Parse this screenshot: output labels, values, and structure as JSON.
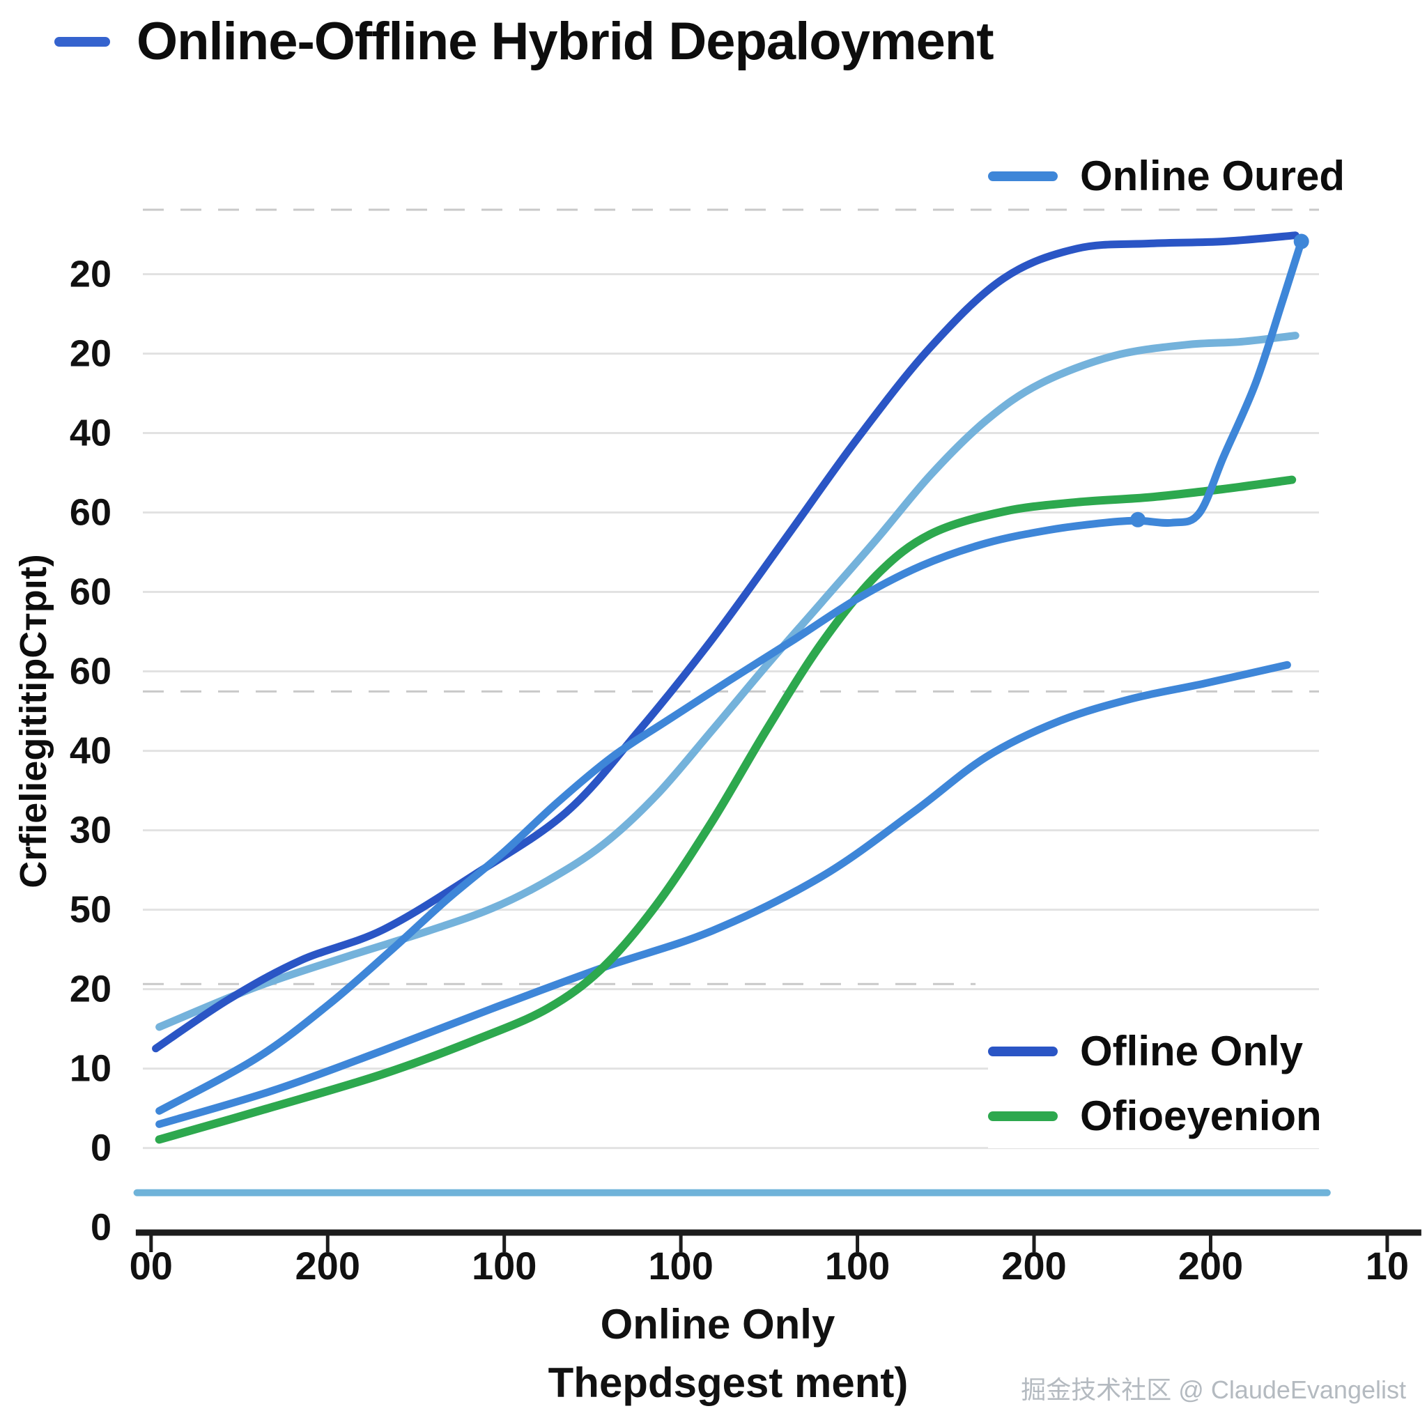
{
  "title": {
    "text": "Online-Offline Hybrid Depaloyment",
    "dash_color": "#3563CE"
  },
  "watermark": "掘金技术社区 @ ClaudeEvangelist",
  "chart_data": {
    "type": "line",
    "title": "Online-Offline Hybrid Depaloyment",
    "xlabel": "Online Only",
    "xlabel_sub": "Thepdsgest ment)",
    "ylabel": "CrfieliegititipCтpıt)",
    "x_ticks": [
      "00",
      "200",
      "100",
      "100",
      "100",
      "200",
      "200",
      "10"
    ],
    "y_ticks": [
      "20",
      "20",
      "40",
      "60",
      "60",
      "60",
      "40",
      "30",
      "50",
      "20",
      "10",
      "0",
      "0"
    ],
    "grid": true,
    "legend_top": [
      {
        "label": "Online Oured",
        "color": "#3E86D8"
      }
    ],
    "legend_bottom": [
      {
        "label": "Ofline Only",
        "color": "#2A55C5"
      },
      {
        "label": "Ofioeyenion",
        "color": "#2DA84E"
      }
    ],
    "series": [
      {
        "id": "flat-baseline",
        "color": "#6FB3D9",
        "width": 10,
        "points": [
          [
            -0.005,
            0.039
          ],
          [
            1.007,
            0.039
          ]
        ]
      },
      {
        "id": "mid-blue-lower",
        "color": "#3E86D8",
        "width": 11,
        "points": [
          [
            0.014,
            0.106
          ],
          [
            0.111,
            0.139
          ],
          [
            0.204,
            0.178
          ],
          [
            0.297,
            0.219
          ],
          [
            0.391,
            0.259
          ],
          [
            0.484,
            0.295
          ],
          [
            0.577,
            0.348
          ],
          [
            0.655,
            0.411
          ],
          [
            0.717,
            0.465
          ],
          [
            0.779,
            0.5
          ],
          [
            0.841,
            0.522
          ],
          [
            0.903,
            0.537
          ],
          [
            0.973,
            0.555
          ]
        ]
      },
      {
        "id": "sky-blue-upper",
        "color": "#74B2DB",
        "width": 11,
        "points": [
          [
            0.014,
            0.201
          ],
          [
            0.096,
            0.24
          ],
          [
            0.174,
            0.27
          ],
          [
            0.243,
            0.295
          ],
          [
            0.297,
            0.317
          ],
          [
            0.344,
            0.344
          ],
          [
            0.391,
            0.379
          ],
          [
            0.437,
            0.428
          ],
          [
            0.484,
            0.491
          ],
          [
            0.53,
            0.554
          ],
          [
            0.577,
            0.616
          ],
          [
            0.624,
            0.678
          ],
          [
            0.67,
            0.741
          ],
          [
            0.717,
            0.794
          ],
          [
            0.763,
            0.83
          ],
          [
            0.825,
            0.857
          ],
          [
            0.887,
            0.868
          ],
          [
            0.934,
            0.871
          ],
          [
            0.98,
            0.877
          ]
        ]
      },
      {
        "id": "green-ofioeyenion",
        "color": "#2DA84E",
        "width": 12,
        "points": [
          [
            0.014,
            0.091
          ],
          [
            0.111,
            0.123
          ],
          [
            0.204,
            0.155
          ],
          [
            0.282,
            0.188
          ],
          [
            0.344,
            0.219
          ],
          [
            0.391,
            0.259
          ],
          [
            0.437,
            0.321
          ],
          [
            0.484,
            0.402
          ],
          [
            0.53,
            0.491
          ],
          [
            0.577,
            0.576
          ],
          [
            0.624,
            0.643
          ],
          [
            0.67,
            0.683
          ],
          [
            0.732,
            0.705
          ],
          [
            0.794,
            0.714
          ],
          [
            0.857,
            0.719
          ],
          [
            0.919,
            0.727
          ],
          [
            0.977,
            0.736
          ]
        ]
      },
      {
        "id": "dark-blue-ofline-only",
        "color": "#2A55C5",
        "width": 11,
        "points": [
          [
            0.011,
            0.18
          ],
          [
            0.073,
            0.228
          ],
          [
            0.134,
            0.266
          ],
          [
            0.204,
            0.296
          ],
          [
            0.282,
            0.35
          ],
          [
            0.36,
            0.411
          ],
          [
            0.422,
            0.491
          ],
          [
            0.484,
            0.58
          ],
          [
            0.546,
            0.678
          ],
          [
            0.608,
            0.777
          ],
          [
            0.67,
            0.866
          ],
          [
            0.732,
            0.933
          ],
          [
            0.794,
            0.962
          ],
          [
            0.857,
            0.967
          ],
          [
            0.919,
            0.969
          ],
          [
            0.98,
            0.975
          ]
        ]
      },
      {
        "id": "steep-blue-online-oured",
        "color": "#3E86D8",
        "width": 11,
        "points": [
          [
            0.014,
            0.119
          ],
          [
            0.096,
            0.17
          ],
          [
            0.158,
            0.223
          ],
          [
            0.212,
            0.277
          ],
          [
            0.259,
            0.326
          ],
          [
            0.306,
            0.371
          ],
          [
            0.352,
            0.42
          ],
          [
            0.399,
            0.465
          ],
          [
            0.445,
            0.5
          ],
          [
            0.499,
            0.54
          ],
          [
            0.554,
            0.58
          ],
          [
            0.608,
            0.62
          ],
          [
            0.662,
            0.652
          ],
          [
            0.717,
            0.674
          ],
          [
            0.771,
            0.687
          ],
          [
            0.818,
            0.694
          ],
          [
            0.846,
            0.696
          ],
          [
            0.875,
            0.694
          ],
          [
            0.898,
            0.703
          ],
          [
            0.919,
            0.759
          ],
          [
            0.946,
            0.83
          ],
          [
            0.969,
            0.911
          ],
          [
            0.985,
            0.969
          ]
        ],
        "markers": [
          [
            0.846,
            0.697
          ],
          [
            0.985,
            0.969
          ]
        ]
      }
    ],
    "layout": {
      "plot_left": 205,
      "plot_right": 1893,
      "plot_top": 301,
      "baseline_y": 1769,
      "y_tick_top_f": 0.937,
      "y_tick_bottom_f": 0.005,
      "x_tick_first_f": 0.007,
      "x_tick_last_f": 1.058,
      "axis_x1f": -0.006,
      "axis_x2f": 1.087,
      "y_label_x": 160,
      "x_label_y": 1836,
      "tick_font": 54,
      "grid_color": "#e2e2e2",
      "text_color": "#111111",
      "axis_color": "#1c1c1c",
      "dashed": [
        {
          "f": 1.0,
          "x1f": 0.0,
          "x2f": 1.0
        },
        {
          "f": 0.529,
          "x1f": 0.0,
          "x2f": 1.0
        },
        {
          "f": 0.243,
          "x1f": 0.0,
          "x2f": 0.708
        }
      ],
      "marker_radius": 11
    }
  }
}
